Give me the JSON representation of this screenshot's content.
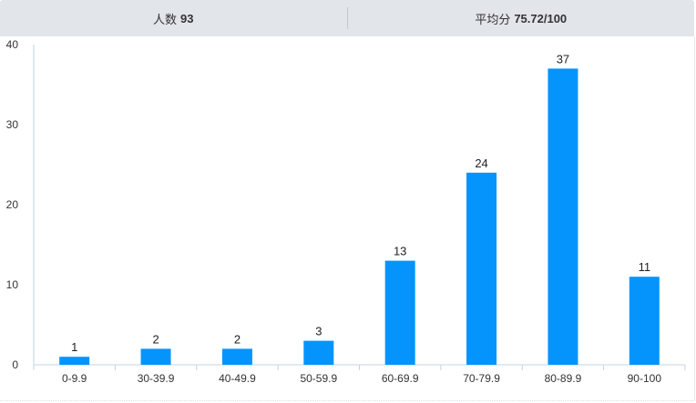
{
  "header": {
    "count_label": "人数",
    "count_value": "93",
    "avg_label": "平均分",
    "avg_value": "75.72/100"
  },
  "chart_data": {
    "type": "bar",
    "categories": [
      "0-9.9",
      "30-39.9",
      "40-49.9",
      "50-59.9",
      "60-69.9",
      "70-79.9",
      "80-89.9",
      "90-100"
    ],
    "values": [
      1,
      2,
      2,
      3,
      13,
      24,
      37,
      11
    ],
    "ylim": [
      0,
      40
    ],
    "yticks": [
      0,
      10,
      20,
      30,
      40
    ],
    "grid": false,
    "bar_color": "#0494fc",
    "data_labels": true
  }
}
